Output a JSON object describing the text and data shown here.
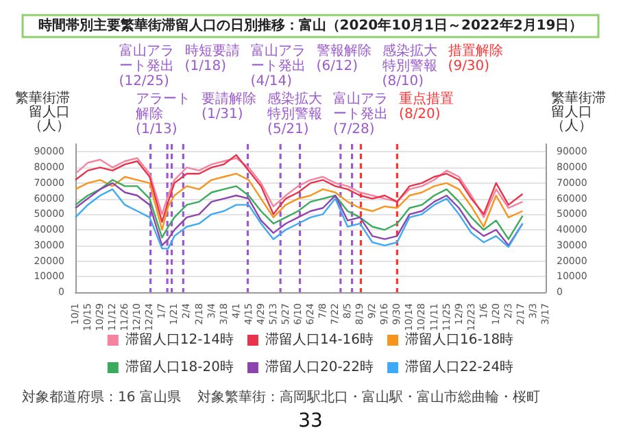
{
  "chart_data": {
    "type": "line",
    "title": "時間帯別主要繁華街滞留人口の日別推移：富山（2020年10月1日～2022年2月19日）",
    "ylabel": "繁華街滞留人口（人）",
    "y2label": "繁華街滞留人口（人）",
    "x": [
      "2020-10-01",
      "2020-10-15",
      "2020-10-29",
      "2020-11-12",
      "2020-11-26",
      "2020-12-10",
      "2020-12-24",
      "2021-01-07",
      "2021-01-14",
      "2021-01-21",
      "2021-02-04",
      "2021-02-18",
      "2021-03-04",
      "2021-03-18",
      "2021-04-01",
      "2021-04-15",
      "2021-04-29",
      "2021-05-13",
      "2021-05-27",
      "2021-06-10",
      "2021-06-24",
      "2021-07-08",
      "2021-07-22",
      "2021-08-05",
      "2021-08-19",
      "2021-09-02",
      "2021-09-16",
      "2021-09-30",
      "2021-10-14",
      "2021-10-28",
      "2021-11-11",
      "2021-11-25",
      "2021-12-09",
      "2021-12-23",
      "2022-01-06",
      "2022-01-20",
      "2022-02-03",
      "2022-02-19"
    ],
    "series": [
      {
        "name": "滞留人口12-14時",
        "color": "#f4839f",
        "values": [
          76000,
          83000,
          85000,
          80000,
          84000,
          86000,
          76000,
          50000,
          62000,
          72000,
          80000,
          78000,
          82000,
          84000,
          86000,
          80000,
          70000,
          55000,
          62000,
          68000,
          72000,
          74000,
          70000,
          68000,
          64000,
          62000,
          60000,
          58000,
          66000,
          68000,
          72000,
          78000,
          74000,
          62000,
          48000,
          66000,
          54000,
          58000
        ]
      },
      {
        "name": "滞留人口14-16時",
        "color": "#e8334a",
        "values": [
          72000,
          78000,
          80000,
          78000,
          82000,
          84000,
          74000,
          45000,
          58000,
          70000,
          76000,
          76000,
          80000,
          82000,
          88000,
          78000,
          68000,
          50000,
          60000,
          64000,
          70000,
          72000,
          68000,
          66000,
          62000,
          60000,
          62000,
          58000,
          68000,
          70000,
          74000,
          76000,
          72000,
          60000,
          50000,
          70000,
          56000,
          63000
        ]
      },
      {
        "name": "滞留人口16-18時",
        "color": "#f7941d",
        "values": [
          66000,
          70000,
          72000,
          68000,
          74000,
          72000,
          70000,
          40000,
          55000,
          62000,
          68000,
          66000,
          72000,
          74000,
          76000,
          72000,
          60000,
          48000,
          56000,
          60000,
          62000,
          66000,
          64000,
          58000,
          54000,
          52000,
          55000,
          54000,
          62000,
          64000,
          68000,
          70000,
          66000,
          55000,
          42000,
          62000,
          48000,
          52000
        ]
      },
      {
        "name": "滞留人口18-20時",
        "color": "#3aaa5c",
        "values": [
          56000,
          62000,
          66000,
          72000,
          68000,
          68000,
          60000,
          35000,
          42000,
          48000,
          56000,
          58000,
          64000,
          66000,
          68000,
          62000,
          52000,
          44000,
          48000,
          52000,
          58000,
          60000,
          62000,
          52000,
          48000,
          42000,
          40000,
          44000,
          54000,
          56000,
          62000,
          66000,
          58000,
          48000,
          40000,
          46000,
          34000,
          49000
        ]
      },
      {
        "name": "滞留人口20-22時",
        "color": "#8e44ad",
        "values": [
          54000,
          60000,
          66000,
          70000,
          64000,
          62000,
          56000,
          30000,
          34000,
          40000,
          48000,
          50000,
          58000,
          60000,
          62000,
          60000,
          46000,
          38000,
          44000,
          48000,
          52000,
          54000,
          62000,
          46000,
          48000,
          36000,
          34000,
          36000,
          50000,
          52000,
          58000,
          62000,
          54000,
          42000,
          36000,
          40000,
          30000,
          44000
        ]
      },
      {
        "name": "滞留人口22-24時",
        "color": "#3fa9f5",
        "values": [
          48000,
          56000,
          62000,
          66000,
          56000,
          52000,
          48000,
          28000,
          28000,
          36000,
          42000,
          44000,
          50000,
          52000,
          56000,
          56000,
          44000,
          34000,
          40000,
          44000,
          48000,
          50000,
          60000,
          42000,
          44000,
          32000,
          30000,
          32000,
          48000,
          50000,
          56000,
          60000,
          50000,
          38000,
          32000,
          36000,
          29000,
          44000
        ]
      }
    ],
    "xlim": [
      "2020-10-01",
      "2022-03-17"
    ],
    "xticks": [
      {
        "value": "2020-10-01",
        "label": "10/1"
      },
      {
        "value": "2020-10-15",
        "label": "10/15"
      },
      {
        "value": "2020-10-29",
        "label": "10/29"
      },
      {
        "value": "2020-11-12",
        "label": "11/12"
      },
      {
        "value": "2020-11-26",
        "label": "11/26"
      },
      {
        "value": "2020-12-10",
        "label": "12/10"
      },
      {
        "value": "2020-12-24",
        "label": "12/24"
      },
      {
        "value": "2021-01-07",
        "label": "1/7"
      },
      {
        "value": "2021-01-21",
        "label": "1/21"
      },
      {
        "value": "2021-02-04",
        "label": "2/4"
      },
      {
        "value": "2021-02-18",
        "label": "2/18"
      },
      {
        "value": "2021-03-04",
        "label": "3/4"
      },
      {
        "value": "2021-03-18",
        "label": "3/18"
      },
      {
        "value": "2021-04-01",
        "label": "4/1"
      },
      {
        "value": "2021-04-15",
        "label": "4/15"
      },
      {
        "value": "2021-04-29",
        "label": "4/29"
      },
      {
        "value": "2021-05-13",
        "label": "5/13"
      },
      {
        "value": "2021-05-27",
        "label": "5/27"
      },
      {
        "value": "2021-06-10",
        "label": "6/10"
      },
      {
        "value": "2021-06-24",
        "label": "6/24"
      },
      {
        "value": "2021-07-08",
        "label": "7/8"
      },
      {
        "value": "2021-07-22",
        "label": "7/22"
      },
      {
        "value": "2021-08-05",
        "label": "8/5"
      },
      {
        "value": "2021-08-19",
        "label": "8/19"
      },
      {
        "value": "2021-09-02",
        "label": "9/2"
      },
      {
        "value": "2021-09-16",
        "label": "9/16"
      },
      {
        "value": "2021-09-30",
        "label": "9/30"
      },
      {
        "value": "2021-10-14",
        "label": "10/14"
      },
      {
        "value": "2021-10-28",
        "label": "10/28"
      },
      {
        "value": "2021-11-11",
        "label": "11/11"
      },
      {
        "value": "2021-11-25",
        "label": "11/25"
      },
      {
        "value": "2021-12-09",
        "label": "12/9"
      },
      {
        "value": "2021-12-23",
        "label": "12/23"
      },
      {
        "value": "2022-01-06",
        "label": "1/6"
      },
      {
        "value": "2022-01-20",
        "label": "1/20"
      },
      {
        "value": "2022-02-03",
        "label": "2/3"
      },
      {
        "value": "2022-02-17",
        "label": "2/17"
      },
      {
        "value": "2022-03-03",
        "label": "3/3"
      },
      {
        "value": "2022-03-17",
        "label": "3/17"
      }
    ],
    "ylim": [
      0,
      95000
    ],
    "yticks": [
      0,
      10000,
      20000,
      30000,
      40000,
      50000,
      60000,
      70000,
      80000,
      90000
    ],
    "y2lim": [
      0,
      95000
    ],
    "y2ticks": [
      0,
      10000,
      20000,
      30000,
      40000,
      50000,
      60000,
      70000,
      80000,
      90000
    ],
    "grid": "y",
    "legend": "bottom",
    "marker": "none",
    "line_style": "solid",
    "ref_lines": [
      {
        "axis": "x",
        "value": "2020-12-25",
        "label": "富山アラート発出(12/25)",
        "color": "#9b59d0",
        "line_style": "dashed"
      },
      {
        "axis": "x",
        "value": "2021-01-13",
        "label": "アラート解除(1/13)",
        "color": "#9b59d0",
        "line_style": "dashed"
      },
      {
        "axis": "x",
        "value": "2021-01-18",
        "label": "時短要請(1/18)",
        "color": "#9b59d0",
        "line_style": "dashed"
      },
      {
        "axis": "x",
        "value": "2021-01-31",
        "label": "要請解除(1/31)",
        "color": "#9b59d0",
        "line_style": "dashed"
      },
      {
        "axis": "x",
        "value": "2021-04-14",
        "label": "富山アラート発出(4/14)",
        "color": "#9b59d0",
        "line_style": "dashed"
      },
      {
        "axis": "x",
        "value": "2021-05-21",
        "label": "感染拡大特別警報(5/21)",
        "color": "#9b59d0",
        "line_style": "dashed"
      },
      {
        "axis": "x",
        "value": "2021-06-12",
        "label": "警報解除(6/12)",
        "color": "#9b59d0",
        "line_style": "dashed"
      },
      {
        "axis": "x",
        "value": "2021-07-28",
        "label": "富山アラート発出(7/28)",
        "color": "#9b59d0",
        "line_style": "dashed"
      },
      {
        "axis": "x",
        "value": "2021-08-10",
        "label": "感染拡大特別警報(8/10)",
        "color": "#9b59d0",
        "line_style": "dashed"
      },
      {
        "axis": "x",
        "value": "2021-08-20",
        "label": "重点措置(8/20)",
        "color": "#ff3333",
        "line_style": "dashed"
      },
      {
        "axis": "x",
        "value": "2021-09-30",
        "label": "措置解除(9/30)",
        "color": "#ff3333",
        "line_style": "dashed"
      }
    ],
    "annotations": [
      "対象都道府県：16 富山県",
      "対象繁華街：高岡駅北口・富山駅・富山市総曲輪・桜町",
      "33"
    ]
  }
}
